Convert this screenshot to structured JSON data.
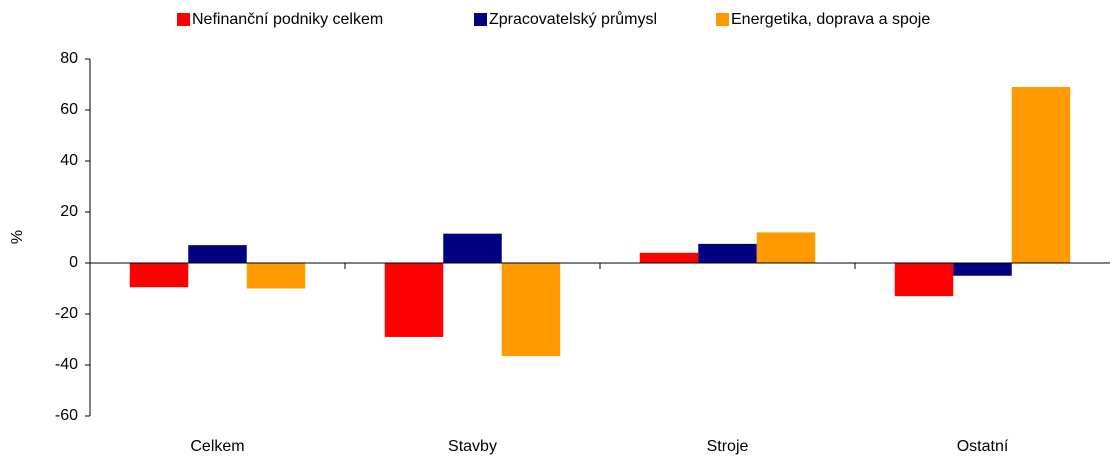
{
  "chart_data": {
    "type": "bar",
    "y_label": "%",
    "categories": [
      "Celkem",
      "Stavby",
      "Stroje",
      "Ostatní"
    ],
    "series": [
      {
        "name": "Nefinanční podniky celkem",
        "color": "#ff0000",
        "values": [
          -9.5,
          -29,
          4,
          -13
        ]
      },
      {
        "name": "Zpracovatelský průmysl",
        "color": "#000080",
        "values": [
          7,
          11.5,
          7.5,
          -5
        ]
      },
      {
        "name": "Energetika, doprava a spoje",
        "color": "#ff9900",
        "values": [
          -10,
          -36.5,
          12,
          69
        ]
      }
    ],
    "ylim": [
      -60,
      80
    ],
    "yticks": [
      -60,
      -40,
      -20,
      0,
      20,
      40,
      60,
      80
    ],
    "grid": false
  }
}
